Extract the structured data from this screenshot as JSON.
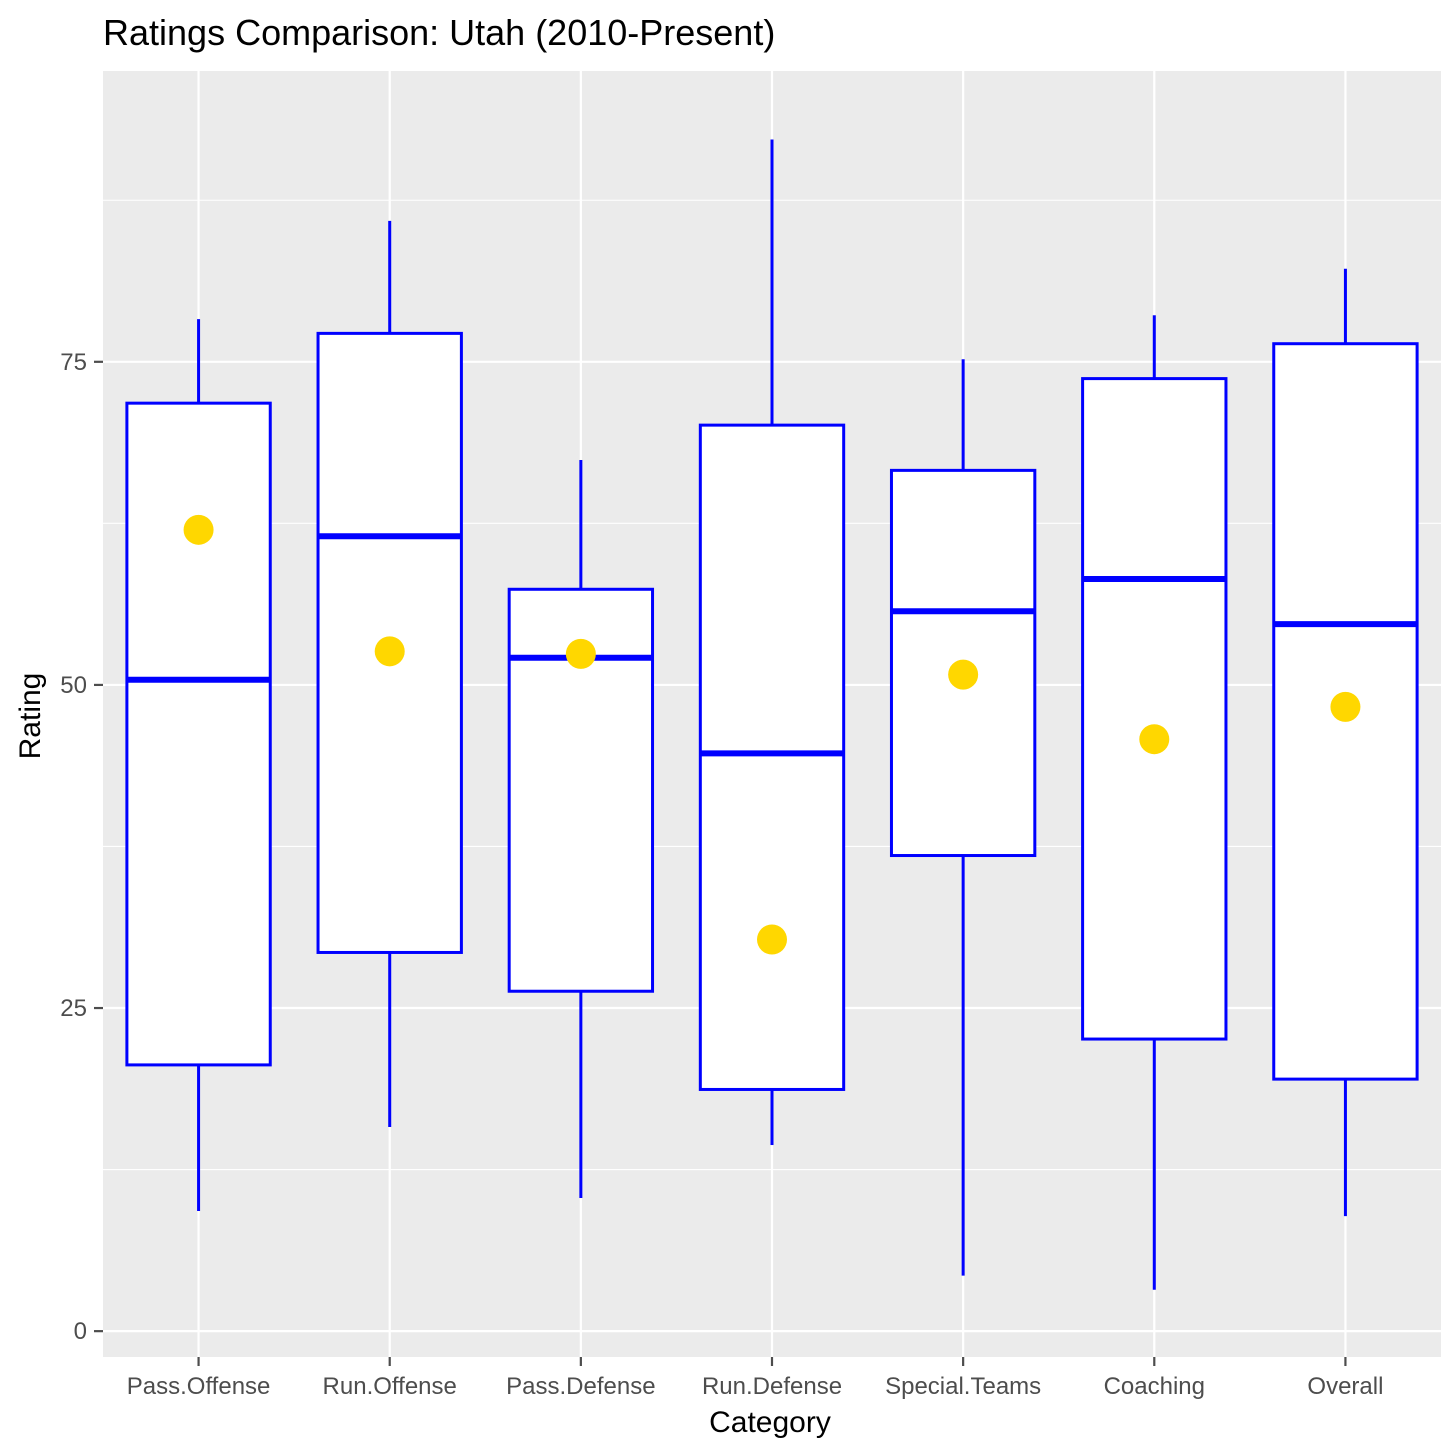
{
  "chart_data": {
    "type": "boxplot",
    "title": "Ratings Comparison: Utah (2010-Present)",
    "xlabel": "Category",
    "ylabel": "Rating",
    "ylim": [
      -2,
      97.5
    ],
    "yticks": [
      0,
      25,
      50,
      75
    ],
    "grid": true,
    "legend": "none",
    "colors": {
      "panel": "#ebebeb",
      "grid": "#ffffff",
      "box_stroke": "#0000ff",
      "box_fill": "#ffffff",
      "point": "#ffd700",
      "tick": "#4d4d4d"
    },
    "categories": [
      "Pass.Offense",
      "Run.Offense",
      "Pass.Defense",
      "Run.Defense",
      "Special.Teams",
      "Coaching",
      "Overall"
    ],
    "boxes": [
      {
        "min": 9.3,
        "q1": 20.6,
        "median": 50.4,
        "q3": 71.8,
        "max": 78.3,
        "point": 62.0
      },
      {
        "min": 15.8,
        "q1": 29.3,
        "median": 61.5,
        "q3": 77.2,
        "max": 85.9,
        "point": 52.6
      },
      {
        "min": 10.3,
        "q1": 26.3,
        "median": 52.1,
        "q3": 57.4,
        "max": 67.4,
        "point": 52.4
      },
      {
        "min": 14.4,
        "q1": 18.7,
        "median": 44.7,
        "q3": 70.1,
        "max": 92.2,
        "point": 30.3
      },
      {
        "min": 4.3,
        "q1": 36.8,
        "median": 55.7,
        "q3": 66.6,
        "max": 75.2,
        "point": 50.8
      },
      {
        "min": 3.2,
        "q1": 22.6,
        "median": 58.2,
        "q3": 73.7,
        "max": 78.6,
        "point": 45.8
      },
      {
        "min": 8.9,
        "q1": 19.5,
        "median": 54.7,
        "q3": 76.4,
        "max": 82.2,
        "point": 48.3
      }
    ]
  }
}
